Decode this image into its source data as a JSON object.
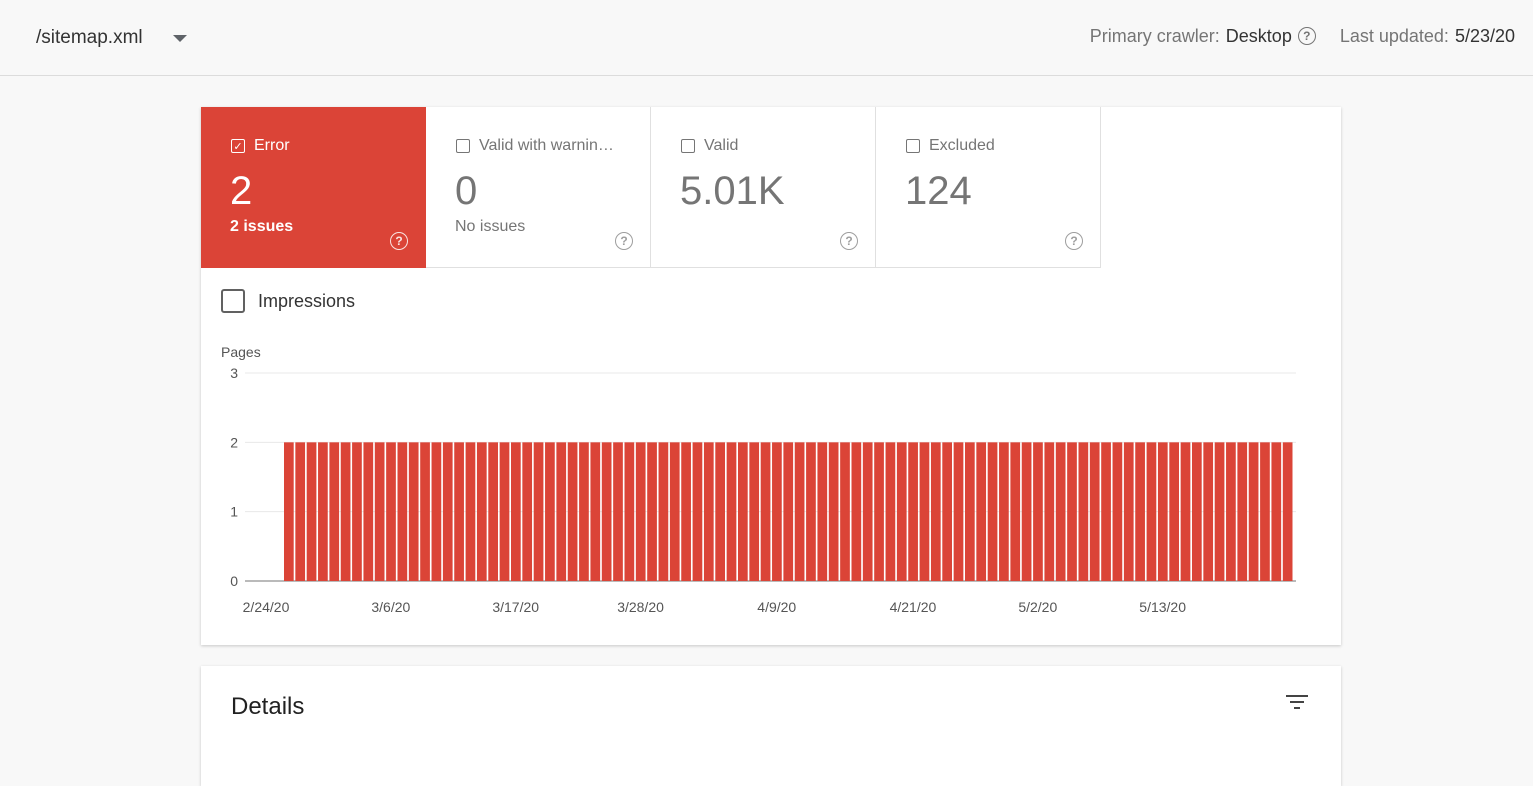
{
  "header": {
    "sitemap": "/sitemap.xml",
    "crawler_label": "Primary crawler:",
    "crawler_value": "Desktop",
    "updated_label": "Last updated:",
    "updated_value": "5/23/20"
  },
  "tiles": [
    {
      "label": "Error",
      "value": "2",
      "sub": "2 issues",
      "checked": true
    },
    {
      "label": "Valid with warnin…",
      "value": "0",
      "sub": "No issues",
      "checked": false
    },
    {
      "label": "Valid",
      "value": "5.01K",
      "sub": "",
      "checked": false
    },
    {
      "label": "Excluded",
      "value": "124",
      "sub": "",
      "checked": false
    }
  ],
  "impressions_label": "Impressions",
  "chart_data": {
    "type": "bar",
    "ylabel": "Pages",
    "ylim": [
      0,
      3
    ],
    "yticks": [
      "0",
      "1",
      "2",
      "3"
    ],
    "xticks": [
      "2/24/20",
      "3/6/20",
      "3/17/20",
      "3/28/20",
      "4/9/20",
      "4/21/20",
      "5/2/20",
      "5/13/20"
    ],
    "start_date": "2/24/20",
    "end_date": "5/22/20",
    "values": [
      2,
      2,
      2,
      2,
      2,
      2,
      2,
      2,
      2,
      2,
      2,
      2,
      2,
      2,
      2,
      2,
      2,
      2,
      2,
      2,
      2,
      2,
      2,
      2,
      2,
      2,
      2,
      2,
      2,
      2,
      2,
      2,
      2,
      2,
      2,
      2,
      2,
      2,
      2,
      2,
      2,
      2,
      2,
      2,
      2,
      2,
      2,
      2,
      2,
      2,
      2,
      2,
      2,
      2,
      2,
      2,
      2,
      2,
      2,
      2,
      2,
      2,
      2,
      2,
      2,
      2,
      2,
      2,
      2,
      2,
      2,
      2,
      2,
      2,
      2,
      2,
      2,
      2,
      2,
      2,
      2,
      2,
      2,
      2,
      2,
      2,
      2,
      2,
      2
    ],
    "bar_color": "#db4437"
  },
  "details": {
    "title": "Details"
  },
  "colors": {
    "error": "#db4437"
  }
}
